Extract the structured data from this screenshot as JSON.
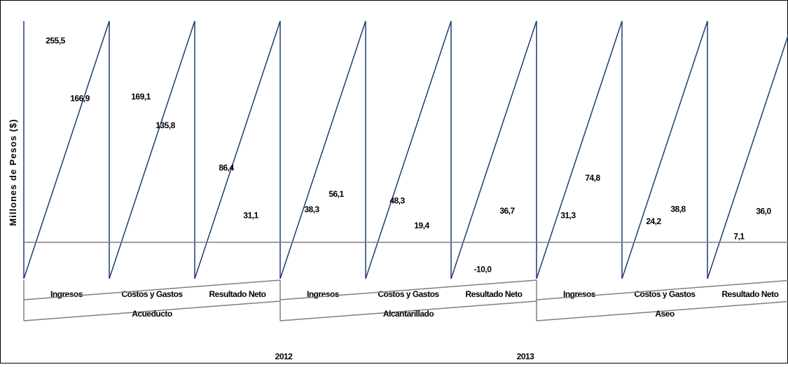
{
  "chart_data": {
    "type": "bar",
    "title": "",
    "ylabel": "Millones de Pesos ($)",
    "xlabel": "",
    "grid": false,
    "legend_position": "bottom",
    "groups": [
      {
        "name": "Acueducto",
        "categories": [
          "Ingresos",
          "Costos y Gastos",
          "Resultado Neto"
        ]
      },
      {
        "name": "Alcantarillado",
        "categories": [
          "Ingresos",
          "Costos y Gastos",
          "Resultado Neto"
        ]
      },
      {
        "name": "Aseo",
        "categories": [
          "Ingresos",
          "Costos y Gastos",
          "Resultado Neto"
        ]
      }
    ],
    "series": [
      {
        "name": "2012",
        "values": [
          255.5,
          169.1,
          86.4,
          38.3,
          48.3,
          -10.0,
          31.3,
          24.2,
          7.1
        ]
      },
      {
        "name": "2013",
        "values": [
          166.9,
          135.8,
          31.1,
          56.1,
          19.4,
          36.7,
          74.8,
          38.8,
          36.0
        ]
      }
    ],
    "value_labels": {
      "2012": [
        "255,5",
        "169,1",
        "86,4",
        "38,3",
        "48,3",
        "-10,0",
        "31,3",
        "24,2",
        "7,1"
      ],
      "2013": [
        "166,9",
        "135,8",
        "31,1",
        "56,1",
        "19,4",
        "36,7",
        "74,8",
        "38,8",
        "36,0"
      ]
    },
    "colors": {
      "stroke": "#1f3c6e",
      "axis": "#7f7f7f",
      "text": "#000000"
    }
  }
}
